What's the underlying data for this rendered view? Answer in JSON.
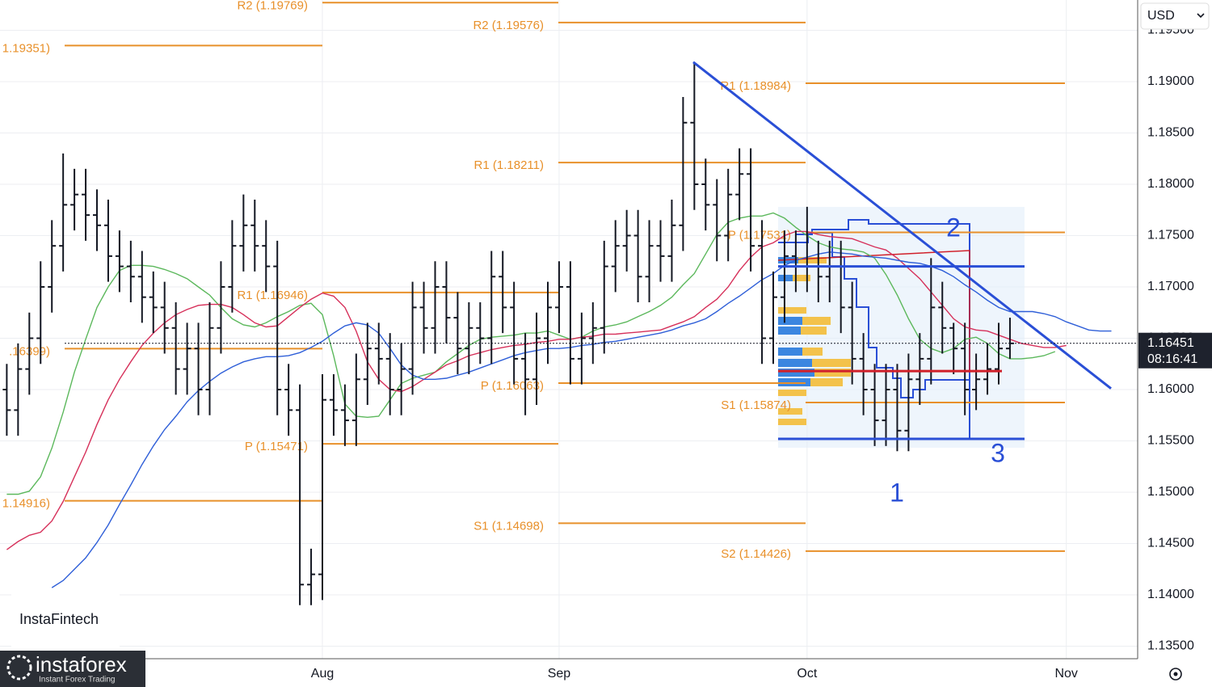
{
  "chart_data": {
    "type": "ohlc",
    "currency": "USD",
    "ylim": [
      1.13378,
      1.19795
    ],
    "yticks": [
      {
        "value": 1.135,
        "label": "1.13500"
      },
      {
        "value": 1.14,
        "label": "1.14000"
      },
      {
        "value": 1.145,
        "label": "1.14500"
      },
      {
        "value": 1.15,
        "label": "1.15000"
      },
      {
        "value": 1.155,
        "label": "1.15500"
      },
      {
        "value": 1.16,
        "label": "1.16000"
      },
      {
        "value": 1.165,
        "label": "1.16500"
      },
      {
        "value": 1.17,
        "label": "1.17000"
      },
      {
        "value": 1.175,
        "label": "1.17500"
      },
      {
        "value": 1.18,
        "label": "1.18000"
      },
      {
        "value": 1.185,
        "label": "1.18500"
      },
      {
        "value": 1.19,
        "label": "1.19000"
      },
      {
        "value": 1.195,
        "label": "1.19500"
      }
    ],
    "categories": [
      null,
      null,
      null,
      null,
      null,
      null,
      null,
      null,
      null,
      null,
      null,
      null,
      null,
      null,
      null,
      null,
      null,
      null,
      null,
      null,
      null,
      null,
      null,
      null,
      null,
      null,
      null,
      null,
      "Aug",
      null,
      null,
      null,
      null,
      null,
      null,
      null,
      null,
      null,
      null,
      null,
      null,
      null,
      null,
      null,
      null,
      null,
      null,
      null,
      null,
      "Sep",
      null,
      null,
      null,
      null,
      null,
      null,
      null,
      null,
      null,
      null,
      null,
      null,
      null,
      null,
      null,
      null,
      null,
      null,
      null,
      null,
      null,
      "Oct",
      null,
      null,
      null,
      null,
      null,
      null,
      null,
      null,
      null,
      null,
      null,
      null,
      null,
      null,
      null,
      null,
      null,
      null,
      null,
      null,
      null,
      null,
      "Nov",
      null,
      null,
      null,
      null
    ],
    "open": [
      1.16,
      1.158,
      1.162,
      1.165,
      1.17,
      1.174,
      1.178,
      1.179,
      1.177,
      1.176,
      1.173,
      1.172,
      1.171,
      1.169,
      1.168,
      1.166,
      1.162,
      1.164,
      1.16,
      1.166,
      1.17,
      1.174,
      1.176,
      1.174,
      1.172,
      1.16,
      1.158,
      1.141,
      1.142,
      1.159,
      1.158,
      1.157,
      1.161,
      1.164,
      1.163,
      1.16,
      1.162,
      1.168,
      1.166,
      1.17,
      1.167,
      1.164,
      1.166,
      1.165,
      1.171,
      1.168,
      1.163,
      1.161,
      1.165,
      1.168,
      1.17,
      1.163,
      1.165,
      1.166,
      1.172,
      1.174,
      1.175,
      1.171,
      1.174,
      1.173,
      1.176,
      1.186,
      1.18,
      1.178,
      1.175,
      1.179,
      1.181,
      1.174,
      1.165,
      1.169,
      1.173,
      1.172,
      1.172,
      1.171,
      1.172,
      1.168,
      1.163,
      1.16,
      1.157,
      1.16,
      1.156,
      1.161,
      1.163,
      1.168,
      1.166,
      1.164,
      1.16,
      1.161,
      1.162,
      1.164,
      null,
      null,
      null,
      null,
      null,
      null,
      null,
      null,
      null
    ],
    "high": [
      1.1625,
      1.1645,
      1.1675,
      1.1725,
      1.1765,
      1.183,
      1.1815,
      1.1815,
      1.1795,
      1.1785,
      1.1755,
      1.1745,
      1.1735,
      1.1715,
      1.1705,
      1.1685,
      1.1665,
      1.1665,
      1.1685,
      1.1725,
      1.1765,
      1.179,
      1.1785,
      1.1765,
      1.1745,
      1.1625,
      1.1605,
      1.1445,
      1.1615,
      1.1615,
      1.1605,
      1.1635,
      1.1665,
      1.1665,
      1.1655,
      1.1645,
      1.1705,
      1.1705,
      1.1725,
      1.1725,
      1.1695,
      1.1685,
      1.1685,
      1.1735,
      1.1735,
      1.1705,
      1.1655,
      1.1675,
      1.1705,
      1.1725,
      1.1725,
      1.1675,
      1.1685,
      1.1745,
      1.1765,
      1.1775,
      1.1775,
      1.1765,
      1.1765,
      1.1785,
      1.1885,
      1.1918,
      1.1825,
      1.1805,
      1.1815,
      1.1835,
      1.1835,
      1.1765,
      1.1715,
      1.1755,
      1.1755,
      1.1778,
      1.1745,
      1.1745,
      1.1745,
      1.1705,
      1.1655,
      1.1625,
      1.1625,
      1.1625,
      1.1635,
      1.1655,
      1.1728,
      1.1705,
      1.1665,
      1.1665,
      1.1635,
      1.1645,
      1.1665,
      1.167,
      null,
      null,
      null,
      null,
      null,
      null,
      null,
      null,
      null
    ],
    "low": [
      1.1555,
      1.1555,
      1.1595,
      1.1625,
      1.1675,
      1.1715,
      1.1755,
      1.1745,
      1.1735,
      1.1705,
      1.1695,
      1.1685,
      1.1665,
      1.1655,
      1.1635,
      1.1595,
      1.1595,
      1.1575,
      1.1575,
      1.1635,
      1.1675,
      1.1715,
      1.1715,
      1.1695,
      1.1575,
      1.1555,
      1.139,
      1.139,
      1.1395,
      1.1555,
      1.1545,
      1.1545,
      1.1585,
      1.1605,
      1.1575,
      1.1575,
      1.1595,
      1.1635,
      1.1635,
      1.1645,
      1.1615,
      1.1615,
      1.1625,
      1.1625,
      1.1655,
      1.1605,
      1.1575,
      1.1585,
      1.1625,
      1.1655,
      1.1605,
      1.1605,
      1.1625,
      1.1635,
      1.1695,
      1.1715,
      1.1685,
      1.1685,
      1.1705,
      1.1705,
      1.1735,
      1.1775,
      1.1755,
      1.1725,
      1.1725,
      1.1765,
      1.1715,
      1.1625,
      1.1625,
      1.1665,
      1.1695,
      1.1695,
      1.1685,
      1.1685,
      1.1655,
      1.1605,
      1.1575,
      1.1545,
      1.1545,
      1.154,
      1.154,
      1.1585,
      1.1605,
      1.1635,
      1.1615,
      1.1575,
      1.158,
      1.1595,
      1.1605,
      1.163,
      null,
      null,
      null,
      null,
      null,
      null,
      null,
      null,
      null
    ],
    "close": [
      1.158,
      1.162,
      1.165,
      1.17,
      1.174,
      1.178,
      1.179,
      1.177,
      1.176,
      1.173,
      1.172,
      1.171,
      1.169,
      1.168,
      1.166,
      1.162,
      1.164,
      1.16,
      1.166,
      1.17,
      1.174,
      1.176,
      1.174,
      1.172,
      1.16,
      1.158,
      1.141,
      1.142,
      1.159,
      1.158,
      1.157,
      1.161,
      1.164,
      1.163,
      1.16,
      1.162,
      1.168,
      1.166,
      1.17,
      1.167,
      1.164,
      1.166,
      1.165,
      1.171,
      1.168,
      1.163,
      1.161,
      1.165,
      1.168,
      1.17,
      1.163,
      1.165,
      1.166,
      1.172,
      1.174,
      1.175,
      1.171,
      1.174,
      1.173,
      1.176,
      1.186,
      1.18,
      1.178,
      1.175,
      1.179,
      1.181,
      1.174,
      1.165,
      1.169,
      1.173,
      1.172,
      1.172,
      1.171,
      1.172,
      1.168,
      1.163,
      1.16,
      1.157,
      1.16,
      1.156,
      1.161,
      1.163,
      1.168,
      1.166,
      1.164,
      1.16,
      1.161,
      1.162,
      1.164,
      1.1645,
      null,
      null,
      null,
      null,
      null,
      null,
      null,
      null,
      null
    ],
    "bar_color": "#131722",
    "indicators": [
      {
        "color": "#5cb85c",
        "values": [
          1.1498,
          1.1498,
          1.1501,
          1.1515,
          1.1543,
          1.1578,
          1.1617,
          1.1649,
          1.168,
          1.17,
          1.1716,
          1.1721,
          1.1721,
          1.172,
          1.1717,
          1.1713,
          1.1708,
          1.17,
          1.1692,
          1.168,
          1.1669,
          1.1663,
          1.1661,
          1.1665,
          1.1671,
          1.1676,
          1.1682,
          1.1684,
          1.1673,
          1.1633,
          1.1586,
          1.1574,
          1.1573,
          1.1574,
          1.159,
          1.1606,
          1.1611,
          1.1614,
          1.1617,
          1.1627,
          1.1635,
          1.1643,
          1.1649,
          1.1651,
          1.1652,
          1.1653,
          1.1655,
          1.1655,
          1.1657,
          1.1653,
          1.1649,
          1.1651,
          1.1657,
          1.1661,
          1.1663,
          1.1666,
          1.1671,
          1.1676,
          1.1682,
          1.169,
          1.1702,
          1.1713,
          1.1732,
          1.1751,
          1.1763,
          1.1767,
          1.1769,
          1.1769,
          1.1772,
          1.1767,
          1.1758,
          1.175,
          1.1743,
          1.1739,
          1.1737,
          1.1736,
          1.1734,
          1.1728,
          1.1712,
          1.1692,
          1.1669,
          1.1649,
          1.164,
          1.1636,
          1.164,
          1.1649,
          1.1651,
          1.1645,
          1.1635,
          1.163,
          1.163,
          1.1631,
          1.1633,
          1.1637,
          null,
          null,
          null,
          null,
          null
        ]
      },
      {
        "color": "#d6305a",
        "values": [
          1.1444,
          1.1452,
          1.1458,
          1.1461,
          1.1472,
          1.1491,
          1.1515,
          1.1539,
          1.1566,
          1.159,
          1.161,
          1.1627,
          1.1643,
          1.1655,
          1.1665,
          1.1673,
          1.1678,
          1.1682,
          1.1683,
          1.1683,
          1.168,
          1.1673,
          1.1665,
          1.1661,
          1.1662,
          1.1671,
          1.168,
          1.1688,
          1.1694,
          1.1691,
          1.168,
          1.1657,
          1.1627,
          1.161,
          1.16,
          1.1598,
          1.1603,
          1.161,
          1.1617,
          1.1624,
          1.1628,
          1.1633,
          1.1636,
          1.1639,
          1.1641,
          1.1643,
          1.1644,
          1.1646,
          1.1647,
          1.1649,
          1.1649,
          1.1651,
          1.1652,
          1.1654,
          1.1654,
          1.1655,
          1.1656,
          1.1657,
          1.1658,
          1.1662,
          1.1666,
          1.1671,
          1.168,
          1.1688,
          1.17,
          1.1716,
          1.1729,
          1.1739,
          1.1743,
          1.175,
          1.1754,
          1.1754,
          1.1751,
          1.1749,
          1.1748,
          1.1747,
          1.1743,
          1.1739,
          1.1736,
          1.1728,
          1.1718,
          1.1708,
          1.1695,
          1.1682,
          1.1669,
          1.1661,
          1.1658,
          1.1657,
          1.1653,
          1.1649,
          1.1645,
          1.1643,
          1.1641,
          1.1641,
          1.1643,
          null,
          null,
          null,
          null
        ]
      },
      {
        "color": "#2f5fd8",
        "values": [
          null,
          null,
          null,
          null,
          1.1407,
          1.1414,
          1.1425,
          1.1436,
          1.1451,
          1.1468,
          1.1488,
          1.1507,
          1.1527,
          1.1545,
          1.1561,
          1.1574,
          1.1588,
          1.1599,
          1.1608,
          1.1616,
          1.1622,
          1.1627,
          1.163,
          1.1632,
          1.1632,
          1.1633,
          1.1636,
          1.1641,
          1.1647,
          1.1655,
          1.1662,
          1.1665,
          1.1663,
          1.1655,
          1.164,
          1.1624,
          1.1614,
          1.161,
          1.161,
          1.1611,
          1.1614,
          1.1617,
          1.1621,
          1.1625,
          1.1629,
          1.1633,
          1.1636,
          1.1638,
          1.164,
          1.164,
          1.1641,
          1.1643,
          1.1644,
          1.1646,
          1.1647,
          1.1649,
          1.1651,
          1.1653,
          1.1655,
          1.1658,
          1.1662,
          1.1665,
          1.1669,
          1.1676,
          1.1684,
          1.1691,
          1.1699,
          1.1707,
          1.1713,
          1.1721,
          1.1726,
          1.1729,
          1.1732,
          1.1734,
          1.1733,
          1.1732,
          1.173,
          1.1729,
          1.1728,
          1.1726,
          1.1724,
          1.1723,
          1.172,
          1.1716,
          1.171,
          1.1702,
          1.1695,
          1.1687,
          1.168,
          1.1676,
          1.1676,
          1.1676,
          1.1674,
          1.1671,
          1.1666,
          1.1662,
          1.1658,
          1.1657,
          1.1657
        ]
      }
    ],
    "pivot_color": "#e8902a",
    "pivots": [
      {
        "levels": [
          {
            "label": "1.19351)",
            "value": 1.19351
          },
          {
            "label": ".16399)",
            "value": 1.16399
          },
          {
            "label": "1.14916)",
            "value": 1.14916
          }
        ]
      },
      {
        "levels": [
          {
            "label": "R2 (1.19769)",
            "value": 1.19769
          },
          {
            "label": "R1 (1.16946)",
            "value": 1.16946
          },
          {
            "label": "P (1.15471)",
            "value": 1.15471
          }
        ]
      },
      {
        "levels": [
          {
            "label": "R2 (1.19576)",
            "value": 1.19576
          },
          {
            "label": "R1 (1.18211)",
            "value": 1.18211
          },
          {
            "label": "P (1.16063)",
            "value": 1.16063
          },
          {
            "label": "S1 (1.14698)",
            "value": 1.14698
          }
        ]
      },
      {
        "levels": [
          {
            "label": "R1 (1.18984)",
            "value": 1.18984
          },
          {
            "label": "P (1.17531)",
            "value": 1.17531
          },
          {
            "label": "S1 (1.15874)",
            "value": 1.15874
          },
          {
            "label": "S2 (1.14426)",
            "value": 1.14426
          }
        ]
      }
    ],
    "lines": [
      {
        "color": "#2a4fd6",
        "values": [
          1.1919,
          1.1601
        ]
      },
      {
        "color": "#2a4fd6",
        "values": [
          1.172,
          1.172
        ]
      },
      {
        "color": "#2a4fd6",
        "values": [
          1.1552,
          1.1552
        ]
      },
      {
        "color": "#d0202a",
        "values": [
          1.1618,
          1.1618
        ]
      }
    ],
    "wave_labels": [
      "1",
      "2",
      "3"
    ],
    "last_price": {
      "value": 1.16451,
      "label": "1.16451"
    },
    "countdown": "08:16:41"
  },
  "branding": {
    "badge": "InstaFintech",
    "logo": "instaforex",
    "tagline": "Instant Forex Trading"
  }
}
